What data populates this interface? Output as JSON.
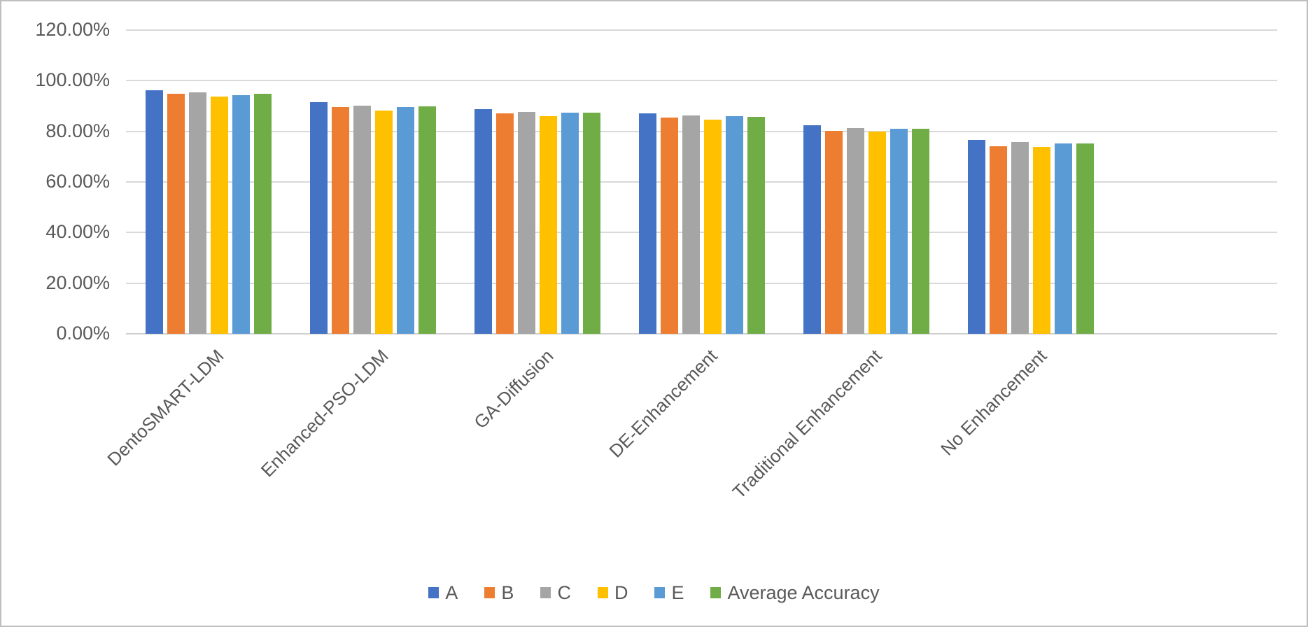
{
  "chart_data": {
    "type": "bar",
    "title": "",
    "xlabel": "",
    "ylabel": "",
    "ylim": [
      0,
      120
    ],
    "grid": true,
    "legend_position": "bottom",
    "yticks": [
      {
        "value": 0,
        "label": "0.00%"
      },
      {
        "value": 20,
        "label": "20.00%"
      },
      {
        "value": 40,
        "label": "40.00%"
      },
      {
        "value": 60,
        "label": "60.00%"
      },
      {
        "value": 80,
        "label": "80.00%"
      },
      {
        "value": 100,
        "label": "100.00%"
      },
      {
        "value": 120,
        "label": "120.00%"
      }
    ],
    "categories": [
      "DentoSMART-LDM",
      "Enhanced-PSO-LDM",
      "GA-Diffusion",
      "DE-Enhancement",
      "Traditional Enhancement",
      "No Enhancement"
    ],
    "series": [
      {
        "name": "A",
        "color": "#4472C4",
        "values": [
          96.2,
          91.4,
          88.8,
          87.2,
          82.3,
          76.7
        ]
      },
      {
        "name": "B",
        "color": "#ED7D31",
        "values": [
          94.9,
          89.6,
          87.1,
          85.3,
          80.1,
          74.2
        ]
      },
      {
        "name": "C",
        "color": "#A5A5A5",
        "values": [
          95.3,
          90.2,
          87.7,
          86.2,
          81.4,
          75.7
        ]
      },
      {
        "name": "D",
        "color": "#FFC000",
        "values": [
          93.7,
          88.2,
          85.9,
          84.6,
          79.8,
          73.8
        ]
      },
      {
        "name": "E",
        "color": "#5B9BD5",
        "values": [
          94.4,
          89.7,
          87.3,
          85.9,
          81.1,
          75.1
        ]
      },
      {
        "name": "Average Accuracy",
        "color": "#70AD47",
        "values": [
          94.9,
          89.8,
          87.4,
          85.8,
          80.9,
          75.1
        ]
      }
    ]
  },
  "colors": {
    "text": "#595959",
    "gridline": "#D9D9D9",
    "border": "#BFBFBF",
    "background": "#FFFFFF"
  }
}
